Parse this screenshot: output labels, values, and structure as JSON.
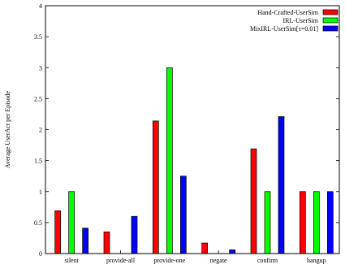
{
  "chart_data": {
    "type": "bar",
    "title": "",
    "xlabel": "",
    "ylabel": "Average UserAct per Episode",
    "ylim": [
      0,
      4
    ],
    "yticks": [
      "0",
      "0.5",
      "1",
      "1.5",
      "2",
      "2.5",
      "3",
      "3.5",
      "4"
    ],
    "categories": [
      "silent",
      "provide-all",
      "provide-one",
      "negate",
      "confirm",
      "hangup"
    ],
    "legend_position": "top-right",
    "grid": false,
    "series": [
      {
        "name": "Hand-Crafted-UserSim",
        "color": "#ff0000",
        "values": [
          0.69,
          0.35,
          2.14,
          0.17,
          1.69,
          1.0
        ]
      },
      {
        "name": "IRL-UserSim",
        "color": "#00ff00",
        "values": [
          1.0,
          0.0,
          3.0,
          0.0,
          1.0,
          1.0
        ]
      },
      {
        "name": "MixIRL-UserSim[τ=0.01]",
        "color": "#0000ff",
        "values": [
          0.41,
          0.6,
          1.25,
          0.06,
          2.21,
          1.0
        ]
      }
    ]
  }
}
